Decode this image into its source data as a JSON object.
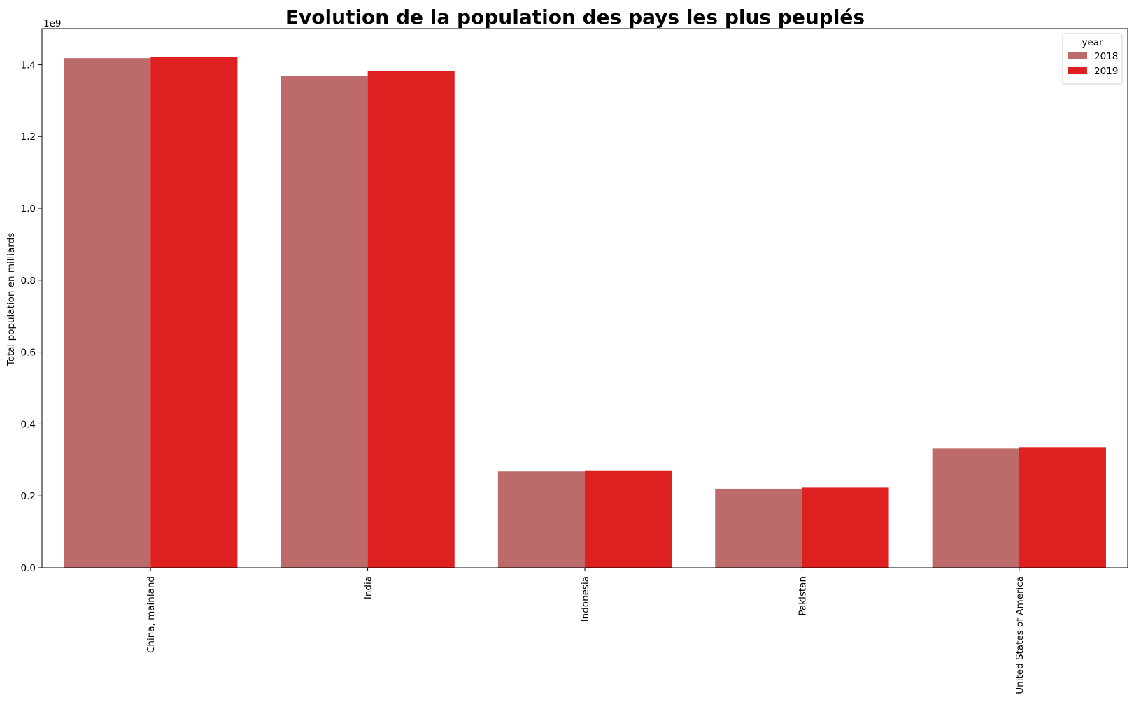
{
  "chart_data": {
    "type": "bar",
    "title": "Evolution de la population des pays les plus peuplés",
    "xlabel": "",
    "ylabel": "Total population en milliards",
    "y_scale_label": "1e9",
    "ylim": [
      0,
      1.5
    ],
    "y_ticks": [
      0.0,
      0.2,
      0.4,
      0.6,
      0.8,
      1.0,
      1.2,
      1.4
    ],
    "y_tick_labels": [
      "0.0",
      "0.2",
      "0.4",
      "0.6",
      "0.8",
      "1.0",
      "1.2",
      "1.4"
    ],
    "categories": [
      "China, mainland",
      "India",
      "Indonesia",
      "Pakistan",
      "United States of America"
    ],
    "x_tick_rotation_deg": 90,
    "legend": {
      "title": "year",
      "placement": "top-right"
    },
    "grid": false,
    "series": [
      {
        "name": "2018",
        "color": "#bd6a6a",
        "values": [
          1.418,
          1.369,
          0.268,
          0.22,
          0.332
        ]
      },
      {
        "name": "2019",
        "color": "#df2020",
        "values": [
          1.421,
          1.383,
          0.271,
          0.223,
          0.334
        ]
      }
    ]
  }
}
